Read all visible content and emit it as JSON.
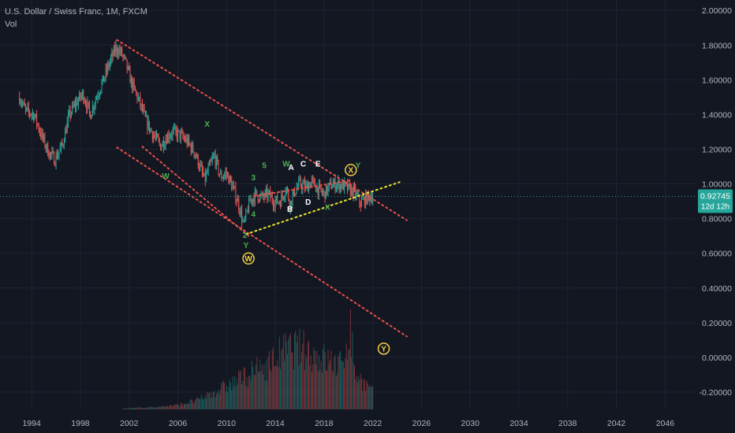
{
  "legend": {
    "symbol": "U.S. Dollar / Swiss Franc, 1M, FXCM",
    "indicator": "Vol"
  },
  "price_tag": {
    "price": "0.92745",
    "countdown": "12d 12h",
    "color": "#26a69a"
  },
  "colors": {
    "background": "#131722",
    "up": "#26a69a",
    "down": "#ef5350",
    "channel": "#e8504a",
    "trend": "#e8e82e",
    "wave_green": "#4caf50",
    "wave_white": "#ffffff",
    "wave_yellow": "#f5d142"
  },
  "chart_data": {
    "type": "candlestick",
    "y_axis": {
      "ticks": [
        "2.00000",
        "1.80000",
        "1.60000",
        "1.40000",
        "1.20000",
        "1.00000",
        "0.80000",
        "0.60000",
        "0.40000",
        "0.20000",
        "0.00000",
        "-0.20000"
      ],
      "tick_values": [
        2.0,
        1.8,
        1.6,
        1.4,
        1.2,
        1.0,
        0.8,
        0.6,
        0.4,
        0.2,
        0.0,
        -0.2
      ],
      "range": [
        -0.3,
        2.06
      ]
    },
    "x_axis": {
      "ticks": [
        "1994",
        "1998",
        "2002",
        "2006",
        "2010",
        "2014",
        "2018",
        "2022",
        "2026",
        "2030",
        "2034",
        "2038",
        "2042",
        "2046"
      ],
      "tick_values": [
        1994,
        1998,
        2002,
        2006,
        2010,
        2014,
        2018,
        2022,
        2026,
        2030,
        2034,
        2038,
        2042,
        2046
      ],
      "range": [
        1991.4,
        2048.5
      ]
    },
    "current_price": 0.92745,
    "price_path": [
      [
        1993.0,
        1.5
      ],
      [
        1993.5,
        1.42
      ],
      [
        1994.2,
        1.4
      ],
      [
        1994.8,
        1.28
      ],
      [
        1995.4,
        1.18
      ],
      [
        1995.9,
        1.14
      ],
      [
        1996.5,
        1.22
      ],
      [
        1997.1,
        1.4
      ],
      [
        1997.6,
        1.46
      ],
      [
        1998.2,
        1.52
      ],
      [
        1998.8,
        1.4
      ],
      [
        1999.3,
        1.5
      ],
      [
        1999.9,
        1.6
      ],
      [
        2000.4,
        1.7
      ],
      [
        2000.9,
        1.78
      ],
      [
        2001.3,
        1.76
      ],
      [
        2001.7,
        1.7
      ],
      [
        2002.2,
        1.58
      ],
      [
        2002.8,
        1.48
      ],
      [
        2003.4,
        1.36
      ],
      [
        2004.0,
        1.28
      ],
      [
        2004.6,
        1.22
      ],
      [
        2005.2,
        1.28
      ],
      [
        2005.6,
        1.3
      ],
      [
        2006.2,
        1.28
      ],
      [
        2006.8,
        1.24
      ],
      [
        2007.4,
        1.18
      ],
      [
        2007.8,
        1.1
      ],
      [
        2008.2,
        1.02
      ],
      [
        2008.6,
        1.1
      ],
      [
        2009.0,
        1.16
      ],
      [
        2009.5,
        1.04
      ],
      [
        2010.0,
        1.06
      ],
      [
        2010.5,
        0.98
      ],
      [
        2011.0,
        0.88
      ],
      [
        2011.4,
        0.76
      ],
      [
        2011.9,
        0.9
      ],
      [
        2012.4,
        0.94
      ],
      [
        2012.9,
        0.92
      ],
      [
        2013.4,
        0.94
      ],
      [
        2013.9,
        0.9
      ],
      [
        2014.4,
        0.9
      ],
      [
        2014.9,
        0.98
      ],
      [
        2015.2,
        0.88
      ],
      [
        2015.6,
        0.96
      ],
      [
        2016.0,
        1.0
      ],
      [
        2016.5,
        0.98
      ],
      [
        2017.0,
        1.01
      ],
      [
        2017.5,
        0.97
      ],
      [
        2018.0,
        0.94
      ],
      [
        2018.5,
        0.99
      ],
      [
        2019.0,
        1.0
      ],
      [
        2019.5,
        0.99
      ],
      [
        2020.0,
        0.97
      ],
      [
        2020.5,
        0.95
      ],
      [
        2021.0,
        0.89
      ],
      [
        2021.5,
        0.92
      ],
      [
        2022.0,
        0.93
      ]
    ],
    "volume": [
      [
        2001.5,
        0.01
      ],
      [
        2003.0,
        0.02
      ],
      [
        2004.5,
        0.03
      ],
      [
        2006.0,
        0.05
      ],
      [
        2007.5,
        0.1
      ],
      [
        2009.0,
        0.2
      ],
      [
        2010.5,
        0.3
      ],
      [
        2011.5,
        0.38
      ],
      [
        2012.5,
        0.45
      ],
      [
        2013.5,
        0.52
      ],
      [
        2014.5,
        0.65
      ],
      [
        2015.5,
        0.7
      ],
      [
        2016.5,
        0.68
      ],
      [
        2017.5,
        0.6
      ],
      [
        2018.5,
        0.55
      ],
      [
        2019.5,
        0.5
      ],
      [
        2020.1,
        0.95
      ],
      [
        2020.6,
        0.4
      ],
      [
        2021.3,
        0.3
      ],
      [
        2022.0,
        0.2
      ]
    ],
    "lines": [
      {
        "name": "channel-upper",
        "style": "dotted",
        "color": "channel",
        "from": [
          2001.0,
          1.83
        ],
        "to": [
          2024.8,
          0.79
        ]
      },
      {
        "name": "channel-lower",
        "style": "dotted",
        "color": "channel",
        "from": [
          2001.0,
          1.21
        ],
        "to": [
          2024.8,
          0.12
        ]
      },
      {
        "name": "channel-mid",
        "style": "dotted",
        "color": "channel",
        "from": [
          2011.8,
          0.7
        ],
        "to": [
          2003.0,
          1.22
        ]
      },
      {
        "name": "triangle-upper",
        "style": "dotted",
        "color": "channel",
        "from": [
          2012.3,
          0.93
        ],
        "to": [
          2020.2,
          1.02
        ]
      },
      {
        "name": "trend-support",
        "style": "dotted",
        "color": "trend",
        "from": [
          2011.6,
          0.71
        ],
        "to": [
          2024.2,
          1.01
        ]
      }
    ],
    "wave_labels": [
      {
        "text": "W",
        "x": 2005.0,
        "y": 1.03,
        "color": "wave_green"
      },
      {
        "text": "X",
        "x": 2008.4,
        "y": 1.33,
        "color": "wave_green"
      },
      {
        "text": "3",
        "x": 2012.2,
        "y": 1.02,
        "color": "wave_green"
      },
      {
        "text": "5",
        "x": 2013.1,
        "y": 1.09,
        "color": "wave_green"
      },
      {
        "text": "4",
        "x": 2012.2,
        "y": 0.81,
        "color": "wave_green"
      },
      {
        "text": "2",
        "x": 2011.5,
        "y": 0.69,
        "color": "wave_green"
      },
      {
        "text": "Y",
        "x": 2011.6,
        "y": 0.63,
        "color": "wave_green"
      },
      {
        "text": "W",
        "x": 2014.9,
        "y": 1.1,
        "color": "wave_green"
      },
      {
        "text": "A",
        "x": 2015.3,
        "y": 1.08,
        "color": "wave_white"
      },
      {
        "text": "C",
        "x": 2016.3,
        "y": 1.1,
        "color": "wave_white"
      },
      {
        "text": "E",
        "x": 2017.5,
        "y": 1.1,
        "color": "wave_white"
      },
      {
        "text": "B",
        "x": 2015.2,
        "y": 0.84,
        "color": "wave_white"
      },
      {
        "text": "D",
        "x": 2016.7,
        "y": 0.88,
        "color": "wave_white"
      },
      {
        "text": "X",
        "x": 2018.3,
        "y": 0.85,
        "color": "wave_green"
      },
      {
        "text": "Y",
        "x": 2020.8,
        "y": 1.09,
        "color": "wave_green"
      }
    ],
    "circled_labels": [
      {
        "text": "W",
        "x": 2011.8,
        "y": 0.57,
        "color": "wave_yellow"
      },
      {
        "text": "X",
        "x": 2020.2,
        "y": 1.08,
        "color": "wave_yellow"
      },
      {
        "text": "Y",
        "x": 2022.9,
        "y": 0.05,
        "color": "wave_yellow"
      }
    ]
  }
}
